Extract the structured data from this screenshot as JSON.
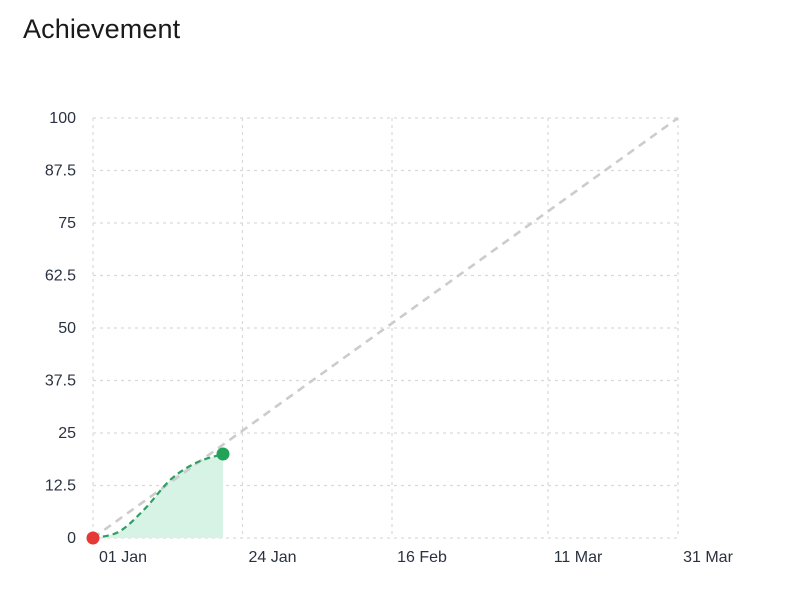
{
  "header": {
    "title": "Achievement"
  },
  "chart_data": {
    "type": "line",
    "title": "Achievement",
    "xlabel": "",
    "ylabel": "",
    "x_ticks": [
      "01 Jan",
      "24 Jan",
      "16 Feb",
      "11 Mar",
      "31 Mar"
    ],
    "xlim": [
      "2024-01-01",
      "2024-03-31"
    ],
    "y_ticks": [
      "0",
      "12.5",
      "25",
      "37.5",
      "50",
      "62.5",
      "75",
      "87.5",
      "100"
    ],
    "ylim": [
      0,
      100
    ],
    "grid": true,
    "series": [
      {
        "kind": "target",
        "style": "dashed",
        "color": "#cccccc",
        "points": [
          {
            "x": "2024-01-01",
            "y": 0
          },
          {
            "x": "2024-03-31",
            "y": 100
          }
        ]
      },
      {
        "kind": "actual",
        "style": "dashed",
        "fill": true,
        "color": "#2e9e63",
        "fill_color": "#d6f3e6",
        "points": [
          {
            "x": "2024-01-01",
            "y": 0
          },
          {
            "x": "2024-01-05",
            "y": 1.5
          },
          {
            "x": "2024-01-09",
            "y": 7
          },
          {
            "x": "2024-01-13",
            "y": 14
          },
          {
            "x": "2024-01-17",
            "y": 18
          },
          {
            "x": "2024-01-21",
            "y": 20
          }
        ]
      }
    ],
    "markers": [
      {
        "name": "start",
        "x": "2024-01-01",
        "y": 0,
        "color": "#e53935"
      },
      {
        "name": "current",
        "x": "2024-01-21",
        "y": 20,
        "color": "#23a35a"
      }
    ]
  }
}
